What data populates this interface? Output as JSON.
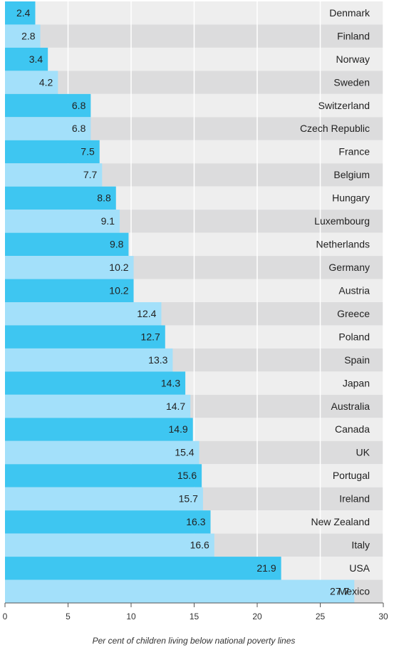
{
  "chart_data": {
    "type": "bar",
    "orientation": "horizontal",
    "categories": [
      "Denmark",
      "Finland",
      "Norway",
      "Sweden",
      "Switzerland",
      "Czech Republic",
      "France",
      "Belgium",
      "Hungary",
      "Luxembourg",
      "Netherlands",
      "Germany",
      "Austria",
      "Greece",
      "Poland",
      "Spain",
      "Japan",
      "Australia",
      "Canada",
      "UK",
      "Portugal",
      "Ireland",
      "New Zealand",
      "Italy",
      "USA",
      "Mexico"
    ],
    "values": [
      2.4,
      2.8,
      3.4,
      4.2,
      6.8,
      6.8,
      7.5,
      7.7,
      8.8,
      9.1,
      9.8,
      10.2,
      10.2,
      12.4,
      12.7,
      13.3,
      14.3,
      14.7,
      14.9,
      15.4,
      15.6,
      15.7,
      16.3,
      16.6,
      21.9,
      27.7
    ],
    "colors": [
      "#3ec6f1",
      "#a3e0fa"
    ],
    "xlim": [
      0,
      30
    ],
    "xticks": [
      0,
      5,
      10,
      15,
      20,
      25,
      30
    ],
    "grid": true,
    "x_label": "Per cent of children living below national poverty lines"
  }
}
